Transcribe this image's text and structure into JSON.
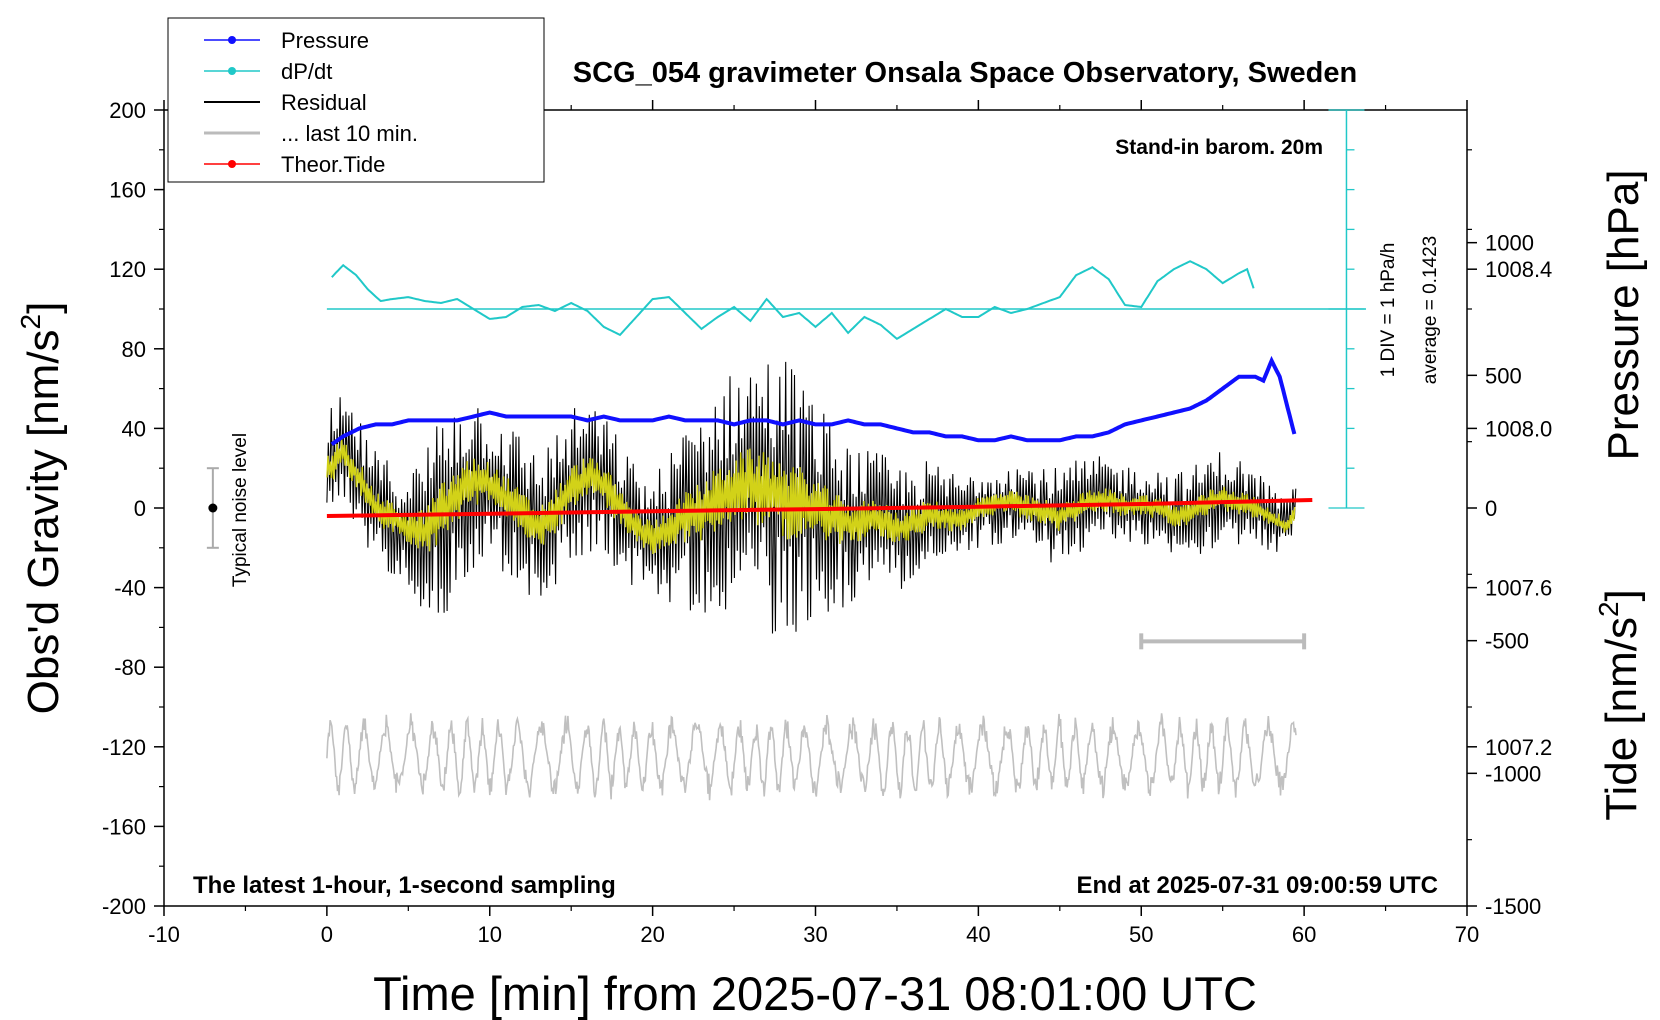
{
  "chart_data": {
    "type": "line",
    "title": "SCG_054 gravimeter Onsala Space Observatory, Sweden",
    "xlabel": "Time [min] from 2025-07-31 08:01:00 UTC",
    "ylabel": "Obs'd Gravity [nm/s",
    "ylabel_sup": "2",
    "ylabel_end": "]",
    "y2label_pressure": "Pressure [hPa]",
    "y2label_tide": "Tide [nm/s",
    "y2label_tide_sup": "2",
    "y2label_tide_end": "]",
    "xlim": [
      -10,
      70
    ],
    "ylim": [
      -200,
      200
    ],
    "pressure_lim": [
      1006.8,
      1008.8
    ],
    "tide_lim": [
      -1500,
      1500
    ],
    "x_ticks": [
      "-10",
      "0",
      "10",
      "20",
      "30",
      "40",
      "50",
      "60",
      "70"
    ],
    "y_ticks": [
      "-200",
      "-160",
      "-120",
      "-80",
      "-40",
      "0",
      "40",
      "80",
      "120",
      "160",
      "200"
    ],
    "pressure_ticks": [
      "1007.2",
      "1007.6",
      "1008.0",
      "1008.4"
    ],
    "tide_ticks": [
      "-1500",
      "-1000",
      "-500",
      "0",
      "500",
      "1000"
    ],
    "annotations": {
      "stand_in": "Stand-in barom. 20m",
      "latest": "The latest 1-hour, 1-second sampling",
      "end_at": "End at 2025-07-31 09:00:59 UTC",
      "noise": "Typical noise level",
      "div": "1 DIV = 1 hPa/h",
      "average": "average = 0.1423"
    },
    "legend": [
      {
        "label": "Pressure",
        "color": "#1010ff",
        "marker": true
      },
      {
        "label": "dP/dt",
        "color": "#20c8c8",
        "marker": true
      },
      {
        "label": "Residual",
        "color": "#000000",
        "marker": false
      },
      {
        "label": "... last 10 min.",
        "color": "#bbbbbb",
        "marker": false
      },
      {
        "label": "Theor.Tide",
        "color": "#ff0000",
        "marker": true
      }
    ],
    "series": [
      {
        "name": "Pressure",
        "color": "#1010ff",
        "axis": "pressure",
        "x": [
          0.3,
          1,
          2,
          3,
          4,
          5,
          6,
          7,
          8,
          9,
          10,
          11,
          12,
          13,
          14,
          15,
          16,
          17,
          18,
          19,
          20,
          21,
          22,
          23,
          24,
          25,
          26,
          27,
          28,
          29,
          30,
          31,
          32,
          33,
          34,
          35,
          36,
          37,
          38,
          39,
          40,
          41,
          42,
          43,
          44,
          45,
          46,
          47,
          48,
          49,
          50,
          51,
          52,
          53,
          54,
          55,
          56,
          57,
          57.5,
          58,
          58.5,
          59,
          59.5
        ],
        "y": [
          1007.96,
          1007.98,
          1008.0,
          1008.01,
          1008.01,
          1008.02,
          1008.02,
          1008.02,
          1008.02,
          1008.03,
          1008.04,
          1008.03,
          1008.03,
          1008.03,
          1008.03,
          1008.03,
          1008.02,
          1008.03,
          1008.02,
          1008.02,
          1008.02,
          1008.03,
          1008.02,
          1008.02,
          1008.02,
          1008.01,
          1008.02,
          1008.02,
          1008.01,
          1008.02,
          1008.01,
          1008.01,
          1008.02,
          1008.01,
          1008.01,
          1008.0,
          1007.99,
          1007.99,
          1007.98,
          1007.98,
          1007.97,
          1007.97,
          1007.98,
          1007.97,
          1007.97,
          1007.97,
          1007.98,
          1007.98,
          1007.99,
          1008.01,
          1008.02,
          1008.03,
          1008.04,
          1008.05,
          1008.07,
          1008.1,
          1008.13,
          1008.13,
          1008.12,
          1008.17,
          1008.13,
          1008.05,
          1007.97
        ]
      },
      {
        "name": "dP/dt",
        "color": "#20c8c8",
        "axis": "gravity",
        "x": [
          0.3,
          1,
          1.8,
          2.5,
          3.3,
          4,
          5,
          6,
          7,
          8,
          9,
          10,
          11,
          12,
          13,
          14,
          15,
          16,
          17,
          18,
          19,
          20,
          21,
          22,
          23,
          24,
          25,
          26,
          27,
          28,
          29,
          30,
          31,
          32,
          33,
          34,
          35,
          36,
          37,
          38,
          39,
          40,
          41,
          42,
          43,
          44,
          45,
          46,
          47,
          48,
          49,
          50,
          51,
          52,
          53,
          54,
          55,
          56,
          56.5,
          57
        ],
        "y": [
          116,
          122,
          117,
          110,
          104,
          105,
          106,
          104,
          103,
          105,
          100,
          95,
          96,
          101,
          102,
          99,
          103,
          99,
          91,
          87,
          96,
          105,
          106,
          98,
          90,
          96,
          101,
          94,
          105,
          96,
          98,
          91,
          98,
          88,
          96,
          92,
          85,
          90,
          95,
          100,
          96,
          96,
          101,
          98,
          100,
          103,
          106,
          117,
          121,
          115,
          102,
          101,
          114,
          120,
          124,
          120,
          113,
          118,
          120,
          108
        ]
      },
      {
        "name": "Theor.Tide",
        "color": "#ff0000",
        "axis": "tide",
        "x": [
          0,
          10,
          20,
          30,
          40,
          50,
          60.5
        ],
        "y": [
          -30,
          -22,
          -12,
          -4,
          5,
          15,
          30
        ]
      }
    ],
    "residual": {
      "x_range": [
        0,
        59.5
      ],
      "envelope": [
        [
          0,
          30
        ],
        [
          5,
          28
        ],
        [
          7,
          55
        ],
        [
          10,
          40
        ],
        [
          15,
          40
        ],
        [
          20,
          30
        ],
        [
          23,
          55
        ],
        [
          25,
          60
        ],
        [
          28,
          75
        ],
        [
          30,
          55
        ],
        [
          33,
          35
        ],
        [
          36,
          30
        ],
        [
          40,
          20
        ],
        [
          45,
          25
        ],
        [
          50,
          20
        ],
        [
          55,
          25
        ],
        [
          60,
          12
        ]
      ]
    },
    "smoothed_residual": {
      "color": "#d2d218",
      "x": [
        0,
        1,
        2,
        3,
        4,
        5,
        6,
        7,
        8,
        9,
        10,
        11,
        12,
        13,
        14,
        15,
        16,
        17,
        18,
        19,
        20,
        21,
        22,
        23,
        24,
        25,
        26,
        27,
        28,
        29,
        30,
        31,
        32,
        33,
        34,
        35,
        36,
        37,
        38,
        39,
        40,
        41,
        42,
        43,
        44,
        45,
        46,
        47,
        48,
        49,
        50,
        51,
        52,
        53,
        54,
        55,
        56,
        57,
        58,
        59,
        59.5
      ],
      "y": [
        18,
        28,
        15,
        0,
        -5,
        -10,
        -12,
        -3,
        6,
        14,
        12,
        5,
        -3,
        -10,
        -2,
        10,
        16,
        12,
        0,
        -10,
        -15,
        -10,
        -5,
        -2,
        5,
        10,
        12,
        8,
        5,
        3,
        0,
        -5,
        -8,
        -6,
        -5,
        -10,
        -8,
        -3,
        -5,
        -5,
        0,
        2,
        3,
        0,
        -2,
        -5,
        0,
        3,
        4,
        1,
        2,
        0,
        -4,
        -3,
        2,
        5,
        3,
        0,
        -5,
        -10,
        0
      ]
    },
    "last_10min": {
      "color": "#c0c0c0",
      "x_range": [
        50,
        60
      ],
      "display_x_range": [
        0,
        59.5
      ],
      "center": -125,
      "amplitude": 15
    },
    "noise_bar": {
      "x": -7,
      "center": 0,
      "half_range": 20
    },
    "last10_marker": {
      "x_start": 50,
      "x_end": 60,
      "y": -67
    }
  }
}
